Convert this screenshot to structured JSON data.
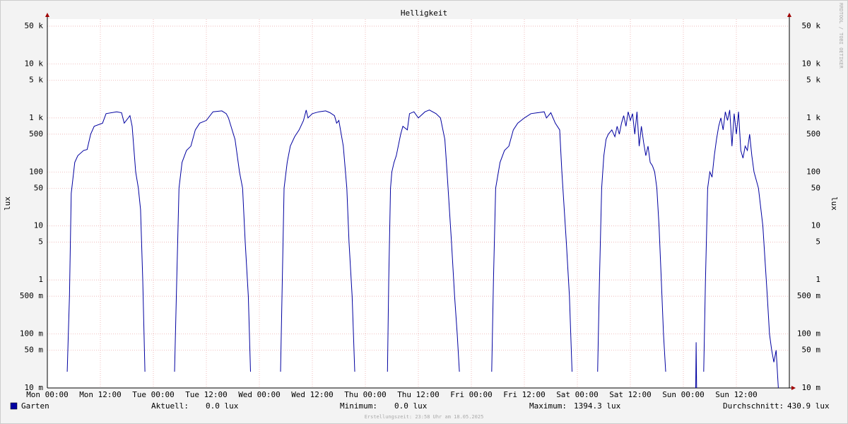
{
  "chart_data": {
    "type": "line",
    "title": "Helligkeit",
    "y_label": "lux",
    "y2_label": "lux",
    "watermark": "RRDTOOL / TOBI OETIKER",
    "footer": "Erstellungszeit: 23:58 Uhr am 18.05.2025",
    "log_scale": true,
    "grid": true,
    "xlim": [
      0,
      168
    ],
    "ylim": [
      0.01,
      67600
    ],
    "xticks": [
      {
        "value": 0,
        "label": "Mon 00:00"
      },
      {
        "value": 12,
        "label": "Mon 12:00"
      },
      {
        "value": 24,
        "label": "Tue 00:00"
      },
      {
        "value": 36,
        "label": "Tue 12:00"
      },
      {
        "value": 48,
        "label": "Wed 00:00"
      },
      {
        "value": 60,
        "label": "Wed 12:00"
      },
      {
        "value": 72,
        "label": "Thu 00:00"
      },
      {
        "value": 84,
        "label": "Thu 12:00"
      },
      {
        "value": 96,
        "label": "Fri 00:00"
      },
      {
        "value": 108,
        "label": "Fri 12:00"
      },
      {
        "value": 120,
        "label": "Sat 00:00"
      },
      {
        "value": 132,
        "label": "Sat 12:00"
      },
      {
        "value": 144,
        "label": "Sun 00:00"
      },
      {
        "value": 156,
        "label": "Sun 12:00"
      }
    ],
    "yticks": [
      {
        "value": 0.01,
        "label": "10 m"
      },
      {
        "value": 0.05,
        "label": "50 m"
      },
      {
        "value": 0.1,
        "label": "100 m"
      },
      {
        "value": 0.5,
        "label": "500 m"
      },
      1,
      5,
      10,
      50,
      100,
      500,
      {
        "value": 1000,
        "label": "1 k"
      },
      {
        "value": 5000,
        "label": "5 k"
      },
      {
        "value": 10000,
        "label": "10 k"
      },
      {
        "value": 50000,
        "label": "50 k"
      }
    ],
    "x": [
      4.5,
      5.0,
      5.4,
      6.2,
      6.9,
      8.2,
      9.0,
      9.8,
      10.6,
      12.5,
      13.3,
      15.7,
      16.8,
      17.4,
      18.7,
      19.2,
      20.0,
      20.6,
      21.1,
      21.6,
      22.1,
      22.5,
      28.8,
      29.3,
      29.8,
      30.5,
      31.5,
      32.5,
      33.5,
      34.5,
      36.0,
      37.5,
      39.5,
      40.5,
      41.0,
      42.5,
      43.5,
      44.2,
      44.8,
      45.5,
      46.0,
      46.5,
      52.8,
      53.2,
      53.6,
      54.3,
      55.0,
      56.0,
      57.0,
      58.0,
      58.6,
      59.0,
      60.0,
      61.5,
      63.0,
      64.0,
      65.0,
      65.5,
      66.0,
      67.0,
      67.8,
      68.3,
      69.0,
      69.6,
      70.0,
      77.0,
      77.3,
      77.7,
      78.0,
      78.5,
      79.0,
      80.0,
      80.5,
      81.5,
      82.0,
      83.0,
      84.0,
      85.5,
      86.5,
      88.0,
      89.0,
      90.0,
      90.5,
      91.5,
      92.2,
      92.8,
      93.3,
      93.8,
      100.6,
      101.0,
      101.5,
      102.5,
      103.5,
      104.5,
      105.5,
      106.5,
      108.0,
      109.5,
      111.0,
      112.5,
      113.0,
      114.0,
      115.0,
      116.0,
      116.5,
      117.5,
      118.2,
      118.8,
      119.3,
      124.6,
      125.0,
      125.5,
      126.0,
      126.5,
      127.0,
      127.8,
      128.5,
      129.0,
      129.5,
      130.0,
      130.5,
      131.0,
      131.5,
      132.0,
      132.5,
      133.0,
      133.5,
      134.0,
      134.5,
      135.0,
      135.5,
      136.0,
      136.5,
      137.0,
      137.5,
      138.0,
      138.5,
      139.0,
      139.5,
      140.0,
      140.5,
      146.8,
      146.9,
      147.0,
      147.1,
      148.6,
      149.0,
      149.5,
      150.0,
      150.5,
      151.0,
      151.5,
      152.0,
      152.5,
      153.0,
      153.5,
      154.0,
      154.5,
      155.0,
      155.5,
      156.0,
      156.5,
      157.0,
      157.5,
      158.0,
      158.5,
      159.0,
      159.5,
      160.0,
      161.0,
      162.0,
      163.0,
      163.5,
      164.0,
      164.5,
      165.0,
      165.5
    ],
    "series": [
      {
        "name": "Garten",
        "color": "#0000a0",
        "values": [
          0.02,
          0.5,
          40,
          150,
          200,
          250,
          260,
          500,
          700,
          800,
          1200,
          1300,
          1250,
          800,
          1100,
          700,
          100,
          50,
          20,
          1,
          0.02,
          null,
          0.02,
          1,
          50,
          150,
          250,
          300,
          600,
          800,
          900,
          1300,
          1350,
          1200,
          1000,
          400,
          100,
          50,
          5,
          0.5,
          0.02,
          null,
          0.02,
          1,
          50,
          150,
          300,
          450,
          600,
          900,
          1400,
          1000,
          1200,
          1300,
          1350,
          1250,
          1100,
          800,
          900,
          300,
          50,
          5,
          0.5,
          0.02,
          null,
          0.02,
          1,
          50,
          100,
          150,
          200,
          500,
          700,
          600,
          1200,
          1300,
          1000,
          1300,
          1400,
          1200,
          1000,
          400,
          100,
          5,
          0.5,
          0.1,
          0.02,
          null,
          0.02,
          1,
          50,
          150,
          250,
          300,
          600,
          800,
          1000,
          1200,
          1250,
          1300,
          1000,
          1250,
          800,
          600,
          100,
          5,
          0.5,
          0.02,
          null,
          0.02,
          1,
          50,
          200,
          400,
          500,
          600,
          450,
          700,
          500,
          800,
          1100,
          700,
          1300,
          900,
          1200,
          500,
          1300,
          300,
          700,
          350,
          200,
          300,
          150,
          130,
          100,
          50,
          10,
          1,
          0.1,
          0.02,
          null,
          0.01,
          0.07,
          0.01,
          null,
          0.02,
          1,
          50,
          100,
          80,
          200,
          400,
          700,
          1000,
          600,
          1300,
          900,
          1400,
          300,
          1200,
          500,
          1300,
          250,
          180,
          300,
          250,
          500,
          200,
          100,
          50,
          10,
          0.5,
          0.1,
          0.05,
          0.03,
          0.05,
          0.01
        ]
      }
    ],
    "stats": [
      {
        "label": "Aktuell:",
        "value": "0.0 lux"
      },
      {
        "label": "Minimum:",
        "value": "0.0 lux"
      },
      {
        "label": "Maximum:",
        "value": "1394.3 lux"
      },
      {
        "label": "Durchschnitt:",
        "value": "430.9 lux"
      }
    ]
  }
}
